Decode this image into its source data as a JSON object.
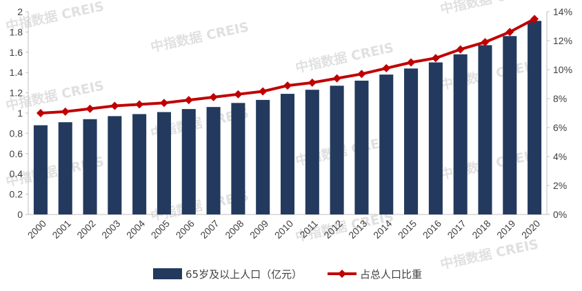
{
  "chart_data": {
    "type": "bar",
    "categories": [
      "2000",
      "2001",
      "2002",
      "2003",
      "2004",
      "2005",
      "2006",
      "2007",
      "2008",
      "2009",
      "2010",
      "2011",
      "2012",
      "2013",
      "2014",
      "2015",
      "2016",
      "2017",
      "2018",
      "2019",
      "2020"
    ],
    "series": [
      {
        "name": "65岁及以上人口（亿元）",
        "type": "bar",
        "axis": "left",
        "color": "#233a5e",
        "values": [
          0.88,
          0.91,
          0.94,
          0.97,
          0.99,
          1.01,
          1.04,
          1.06,
          1.1,
          1.13,
          1.19,
          1.23,
          1.27,
          1.32,
          1.38,
          1.44,
          1.5,
          1.58,
          1.67,
          1.76,
          1.91
        ]
      },
      {
        "name": "占总人口比重",
        "type": "line",
        "axis": "right",
        "color": "#c00000",
        "marker": "diamond",
        "values": [
          7.0,
          7.1,
          7.3,
          7.5,
          7.6,
          7.7,
          7.9,
          8.1,
          8.3,
          8.5,
          8.9,
          9.1,
          9.4,
          9.7,
          10.1,
          10.5,
          10.8,
          11.4,
          11.9,
          12.6,
          13.5
        ]
      }
    ],
    "y_left": {
      "ylim": [
        0,
        2
      ],
      "ticks": [
        "0",
        "0.2",
        "0.4",
        "0.6",
        "0.8",
        "1",
        "1.2",
        "1.4",
        "1.6",
        "1.8",
        "2"
      ]
    },
    "y_right": {
      "ylim": [
        0,
        14
      ],
      "unit": "%",
      "ticks": [
        "0%",
        "2%",
        "4%",
        "6%",
        "8%",
        "10%",
        "12%",
        "14%"
      ]
    },
    "grid": false,
    "legend_position": "bottom-center",
    "title": "",
    "xlabel": "",
    "ylabel": ""
  },
  "watermark": {
    "text": "中指数据 CREIS"
  }
}
